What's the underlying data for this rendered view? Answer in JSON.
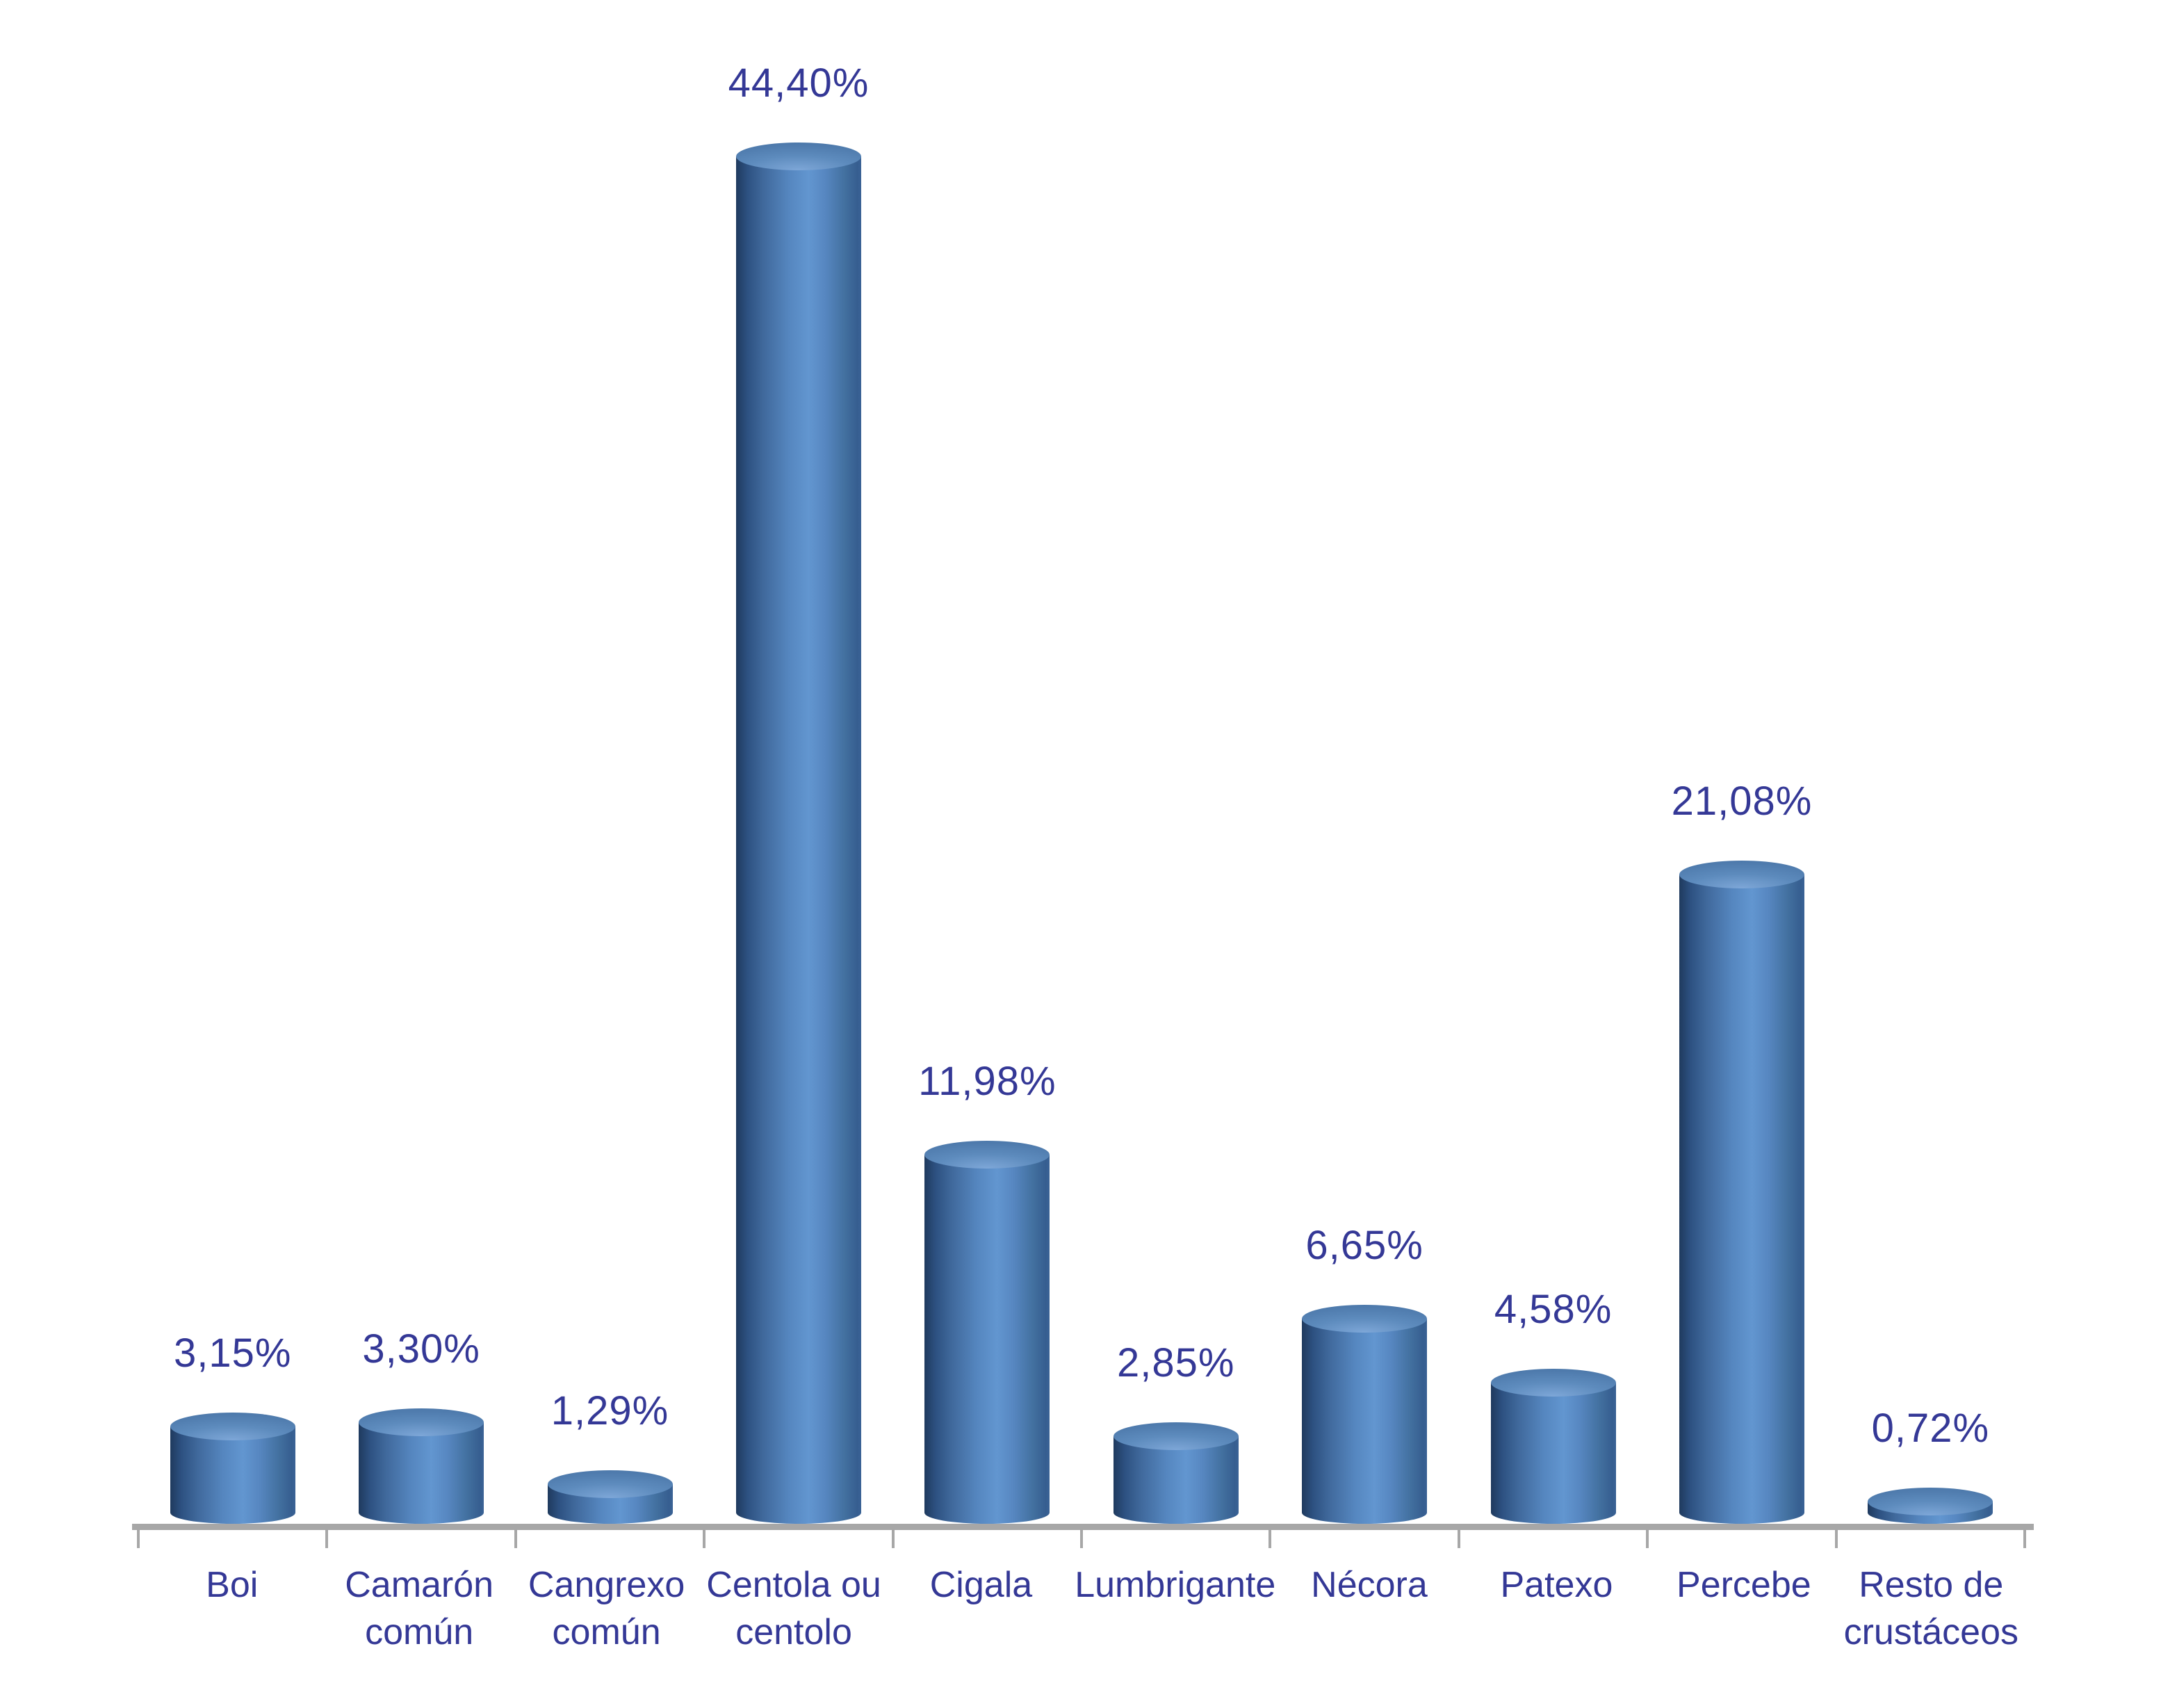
{
  "chart_data": {
    "type": "bar",
    "bar_style": "3d-cylinder-vertical",
    "title": "",
    "xlabel": "",
    "ylabel": "",
    "ylim": [
      0,
      47
    ],
    "grid": false,
    "legend": "none",
    "value_suffix": "%",
    "decimal_separator": ",",
    "categories": [
      "Boi",
      "Camarón común",
      "Cangrexo común",
      "Centola ou centolo",
      "Cigala",
      "Lumbrigante",
      "Nécora",
      "Patexo",
      "Percebe",
      "Resto de crustáceos"
    ],
    "values": [
      3.15,
      3.3,
      1.29,
      44.4,
      11.98,
      2.85,
      6.65,
      4.58,
      21.08,
      0.72
    ],
    "value_labels": [
      "3,15%",
      "3,30%",
      "1,29%",
      "44,40%",
      "11,98%",
      "2,85%",
      "6,65%",
      "4,58%",
      "21,08%",
      "0,72%"
    ],
    "colors": {
      "background": "#ffffff",
      "label_text": "#343896",
      "axis_line": "#a7a7a7",
      "bar_body_light": "#6296d0",
      "bar_body_dark": "#1f3a5e",
      "bar_top": "#4d79ab"
    }
  }
}
